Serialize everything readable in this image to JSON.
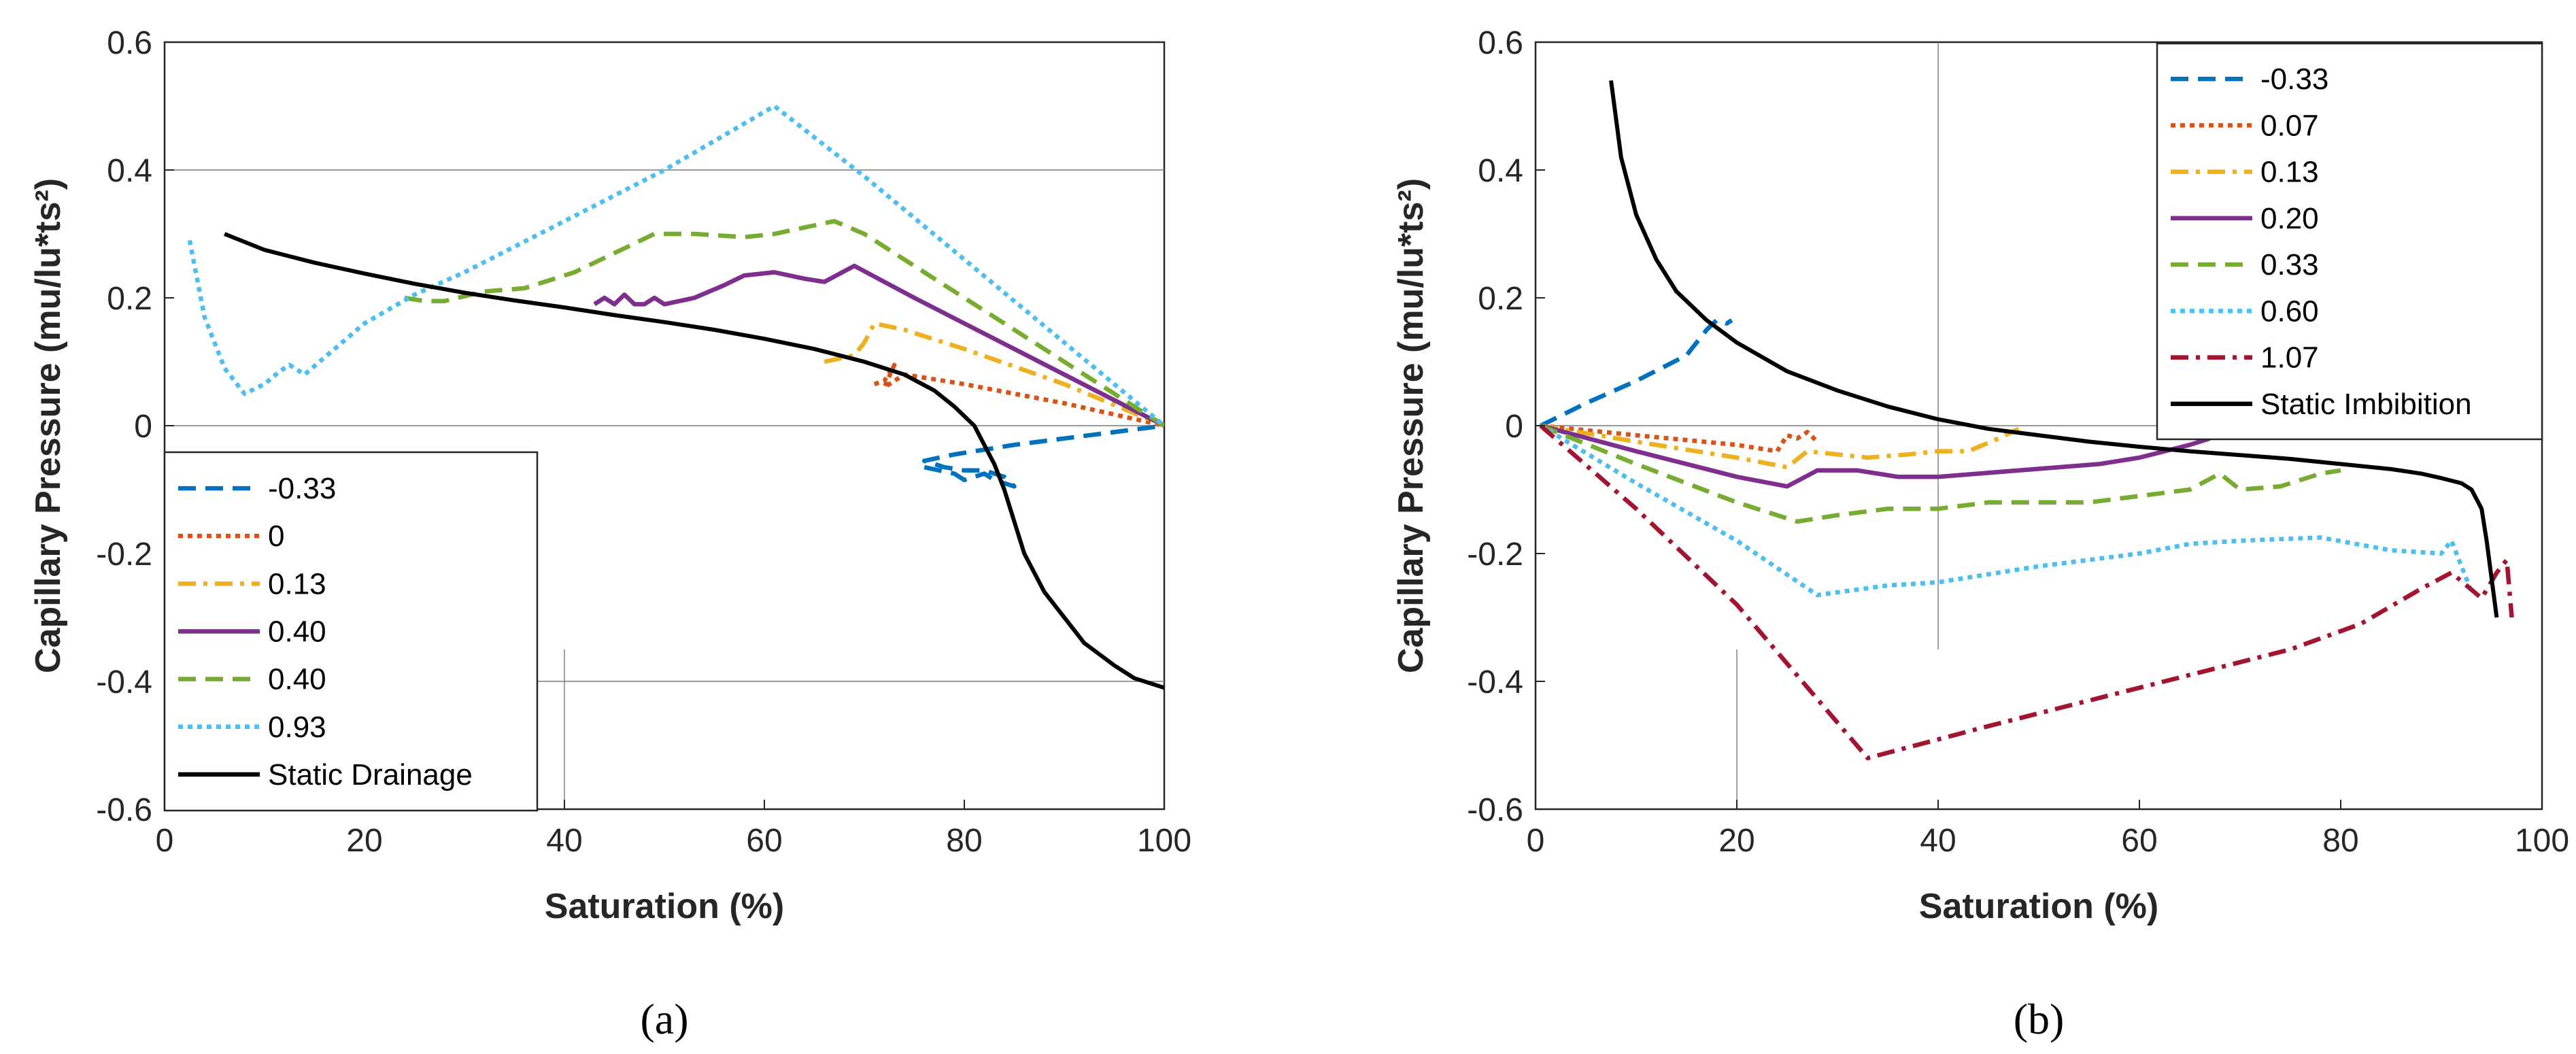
{
  "chart_data": [
    {
      "type": "line",
      "panel_label": "(a)",
      "xlabel": "Saturation (%)",
      "ylabel": "Capillary Pressure (mu/lu*ts²)",
      "xlim": [
        0,
        100
      ],
      "ylim": [
        -0.6,
        0.6
      ],
      "xticks": [
        0,
        20,
        40,
        60,
        80,
        100
      ],
      "yticks": [
        -0.6,
        -0.4,
        -0.2,
        0,
        0.2,
        0.4,
        0.6
      ],
      "xtick_labels": [
        "0",
        "20",
        "40",
        "60",
        "80",
        "100"
      ],
      "ytick_labels": [
        "-0.6",
        "-0.4",
        "-0.2",
        "0",
        "0.2",
        "0.4",
        "0.6"
      ],
      "legend_position": "bottom-left",
      "series": [
        {
          "name": "-0.33",
          "color": "#0072BD",
          "dash": "dashed",
          "x": [
            76,
            79,
            80,
            81,
            82,
            83,
            84,
            85,
            84,
            82,
            80,
            78,
            76,
            79,
            85,
            100
          ],
          "y": [
            -0.065,
            -0.075,
            -0.085,
            -0.08,
            -0.075,
            -0.085,
            -0.09,
            -0.095,
            -0.08,
            -0.07,
            -0.07,
            -0.065,
            -0.055,
            -0.045,
            -0.03,
            0.0
          ]
        },
        {
          "name": "0",
          "color": "#D95319",
          "dash": "dotted",
          "x": [
            71,
            72,
            73,
            72,
            74,
            80,
            90,
            100
          ],
          "y": [
            0.065,
            0.07,
            0.095,
            0.06,
            0.08,
            0.065,
            0.035,
            0.0
          ]
        },
        {
          "name": "0.13",
          "color": "#EDB120",
          "dash": "dashdot",
          "x": [
            66,
            69,
            70,
            71,
            74,
            80,
            90,
            100
          ],
          "y": [
            0.1,
            0.11,
            0.13,
            0.16,
            0.15,
            0.12,
            0.065,
            0.0
          ]
        },
        {
          "name": "0.40",
          "color": "#7E2F8E",
          "dash": "solid",
          "x": [
            43,
            44,
            45,
            46,
            47,
            48,
            49,
            50,
            53,
            56,
            58,
            61,
            64,
            66,
            69,
            75,
            85,
            100
          ],
          "y": [
            0.19,
            0.2,
            0.19,
            0.205,
            0.19,
            0.19,
            0.2,
            0.19,
            0.2,
            0.22,
            0.235,
            0.24,
            0.23,
            0.225,
            0.25,
            0.2,
            0.12,
            0.0
          ]
        },
        {
          "name": "0.40",
          "color": "#77AC30",
          "dash": "dashed",
          "x": [
            24,
            26,
            28,
            32,
            36,
            41,
            45,
            49,
            53,
            58,
            61,
            64,
            67,
            70,
            80,
            90,
            100
          ],
          "y": [
            0.2,
            0.195,
            0.195,
            0.21,
            0.215,
            0.24,
            0.27,
            0.3,
            0.3,
            0.295,
            0.3,
            0.31,
            0.32,
            0.3,
            0.2,
            0.1,
            0.0
          ]
        },
        {
          "name": "0.93",
          "color": "#4DBEEE",
          "dash": "dotted",
          "x": [
            2.5,
            4,
            6,
            8,
            10,
            11.5,
            12.5,
            14,
            17,
            20,
            25,
            30,
            40,
            50,
            61,
            70,
            80,
            90,
            100
          ],
          "y": [
            0.29,
            0.17,
            0.09,
            0.05,
            0.065,
            0.085,
            0.095,
            0.08,
            0.12,
            0.16,
            0.205,
            0.24,
            0.32,
            0.4,
            0.5,
            0.39,
            0.26,
            0.13,
            0.0
          ]
        },
        {
          "name": "Static Drainage",
          "color": "#000000",
          "dash": "solid",
          "x": [
            6,
            10,
            15,
            20,
            25,
            30,
            35,
            40,
            45,
            50,
            55,
            60,
            65,
            70,
            74,
            77,
            79,
            81,
            82,
            83,
            84,
            85,
            86,
            88,
            90,
            92,
            95,
            97,
            100
          ],
          "y": [
            0.3,
            0.275,
            0.255,
            0.238,
            0.222,
            0.208,
            0.196,
            0.185,
            0.173,
            0.162,
            0.15,
            0.136,
            0.12,
            0.1,
            0.08,
            0.055,
            0.03,
            0.0,
            -0.03,
            -0.06,
            -0.1,
            -0.15,
            -0.2,
            -0.26,
            -0.3,
            -0.34,
            -0.375,
            -0.395,
            -0.41
          ]
        }
      ]
    },
    {
      "type": "line",
      "panel_label": "(b)",
      "xlabel": "Saturation (%)",
      "ylabel": "Capillary Pressure (mu/lu*ts²)",
      "xlim": [
        0,
        100
      ],
      "ylim": [
        -0.6,
        0.6
      ],
      "xticks": [
        0,
        20,
        40,
        60,
        80,
        100
      ],
      "yticks": [
        -0.6,
        -0.4,
        -0.2,
        0,
        0.2,
        0.4,
        0.6
      ],
      "xtick_labels": [
        "0",
        "20",
        "40",
        "60",
        "80",
        "100"
      ],
      "ytick_labels": [
        "-0.6",
        "-0.4",
        "-0.2",
        "0",
        "0.2",
        "0.4",
        "0.6"
      ],
      "legend_position": "top-right",
      "series": [
        {
          "name": "-0.33",
          "color": "#0072BD",
          "dash": "dashed",
          "x": [
            0.5,
            5,
            10,
            15,
            17,
            18,
            19,
            19.5
          ],
          "y": [
            0.0,
            0.035,
            0.07,
            0.11,
            0.15,
            0.165,
            0.16,
            0.165
          ]
        },
        {
          "name": "0.07",
          "color": "#D95319",
          "dash": "dotted",
          "x": [
            0.5,
            10,
            20,
            24,
            25,
            26,
            27,
            28
          ],
          "y": [
            0.0,
            -0.015,
            -0.03,
            -0.04,
            -0.015,
            -0.02,
            -0.01,
            -0.025
          ]
        },
        {
          "name": "0.13",
          "color": "#EDB120",
          "dash": "dashdot",
          "x": [
            0.5,
            10,
            20,
            25,
            27,
            30,
            33,
            37,
            40,
            43,
            46,
            48
          ],
          "y": [
            0.0,
            -0.025,
            -0.05,
            -0.065,
            -0.04,
            -0.045,
            -0.05,
            -0.045,
            -0.04,
            -0.04,
            -0.02,
            -0.005
          ]
        },
        {
          "name": "0.20",
          "color": "#7E2F8E",
          "dash": "solid",
          "x": [
            0.5,
            10,
            20,
            25,
            28,
            32,
            36,
            40,
            44,
            48,
            52,
            56,
            60,
            65,
            67
          ],
          "y": [
            0.0,
            -0.04,
            -0.08,
            -0.095,
            -0.07,
            -0.07,
            -0.08,
            -0.08,
            -0.075,
            -0.07,
            -0.065,
            -0.06,
            -0.05,
            -0.03,
            -0.02
          ]
        },
        {
          "name": "0.33",
          "color": "#77AC30",
          "dash": "dashed",
          "x": [
            0.5,
            10,
            20,
            26,
            30,
            35,
            40,
            45,
            50,
            55,
            60,
            65,
            68,
            70,
            74,
            78,
            80
          ],
          "y": [
            0.0,
            -0.06,
            -0.12,
            -0.15,
            -0.14,
            -0.13,
            -0.13,
            -0.12,
            -0.12,
            -0.12,
            -0.11,
            -0.1,
            -0.075,
            -0.1,
            -0.095,
            -0.075,
            -0.07
          ]
        },
        {
          "name": "0.60",
          "color": "#4DBEEE",
          "dash": "dotted",
          "x": [
            0.5,
            10,
            20,
            28,
            35,
            40,
            50,
            60,
            65,
            70,
            78,
            85,
            90,
            91,
            92,
            93
          ],
          "y": [
            0.0,
            -0.09,
            -0.18,
            -0.265,
            -0.25,
            -0.245,
            -0.22,
            -0.2,
            -0.185,
            -0.18,
            -0.175,
            -0.195,
            -0.2,
            -0.18,
            -0.22,
            -0.26
          ]
        },
        {
          "name": "1.07",
          "color": "#A2142F",
          "dash": "dashdot",
          "x": [
            0.5,
            10,
            20,
            33,
            45,
            55,
            65,
            75,
            82,
            88,
            91,
            94,
            95.5,
            96.5,
            97
          ],
          "y": [
            0.0,
            -0.13,
            -0.28,
            -0.52,
            -0.47,
            -0.43,
            -0.39,
            -0.35,
            -0.31,
            -0.255,
            -0.23,
            -0.27,
            -0.23,
            -0.21,
            -0.3
          ]
        },
        {
          "name": "Static Imbibition",
          "color": "#000000",
          "dash": "solid",
          "x": [
            7.5,
            8.5,
            10,
            12,
            14,
            17,
            20,
            25,
            30,
            35,
            40,
            45,
            50,
            55,
            60,
            65,
            70,
            75,
            80,
            85,
            88,
            90,
            92,
            93,
            94,
            94.5,
            95,
            95.5
          ],
          "y": [
            0.54,
            0.42,
            0.33,
            0.26,
            0.21,
            0.165,
            0.13,
            0.085,
            0.055,
            0.03,
            0.01,
            -0.005,
            -0.015,
            -0.025,
            -0.033,
            -0.04,
            -0.046,
            -0.052,
            -0.06,
            -0.068,
            -0.075,
            -0.082,
            -0.09,
            -0.1,
            -0.13,
            -0.18,
            -0.24,
            -0.3
          ]
        }
      ]
    }
  ]
}
